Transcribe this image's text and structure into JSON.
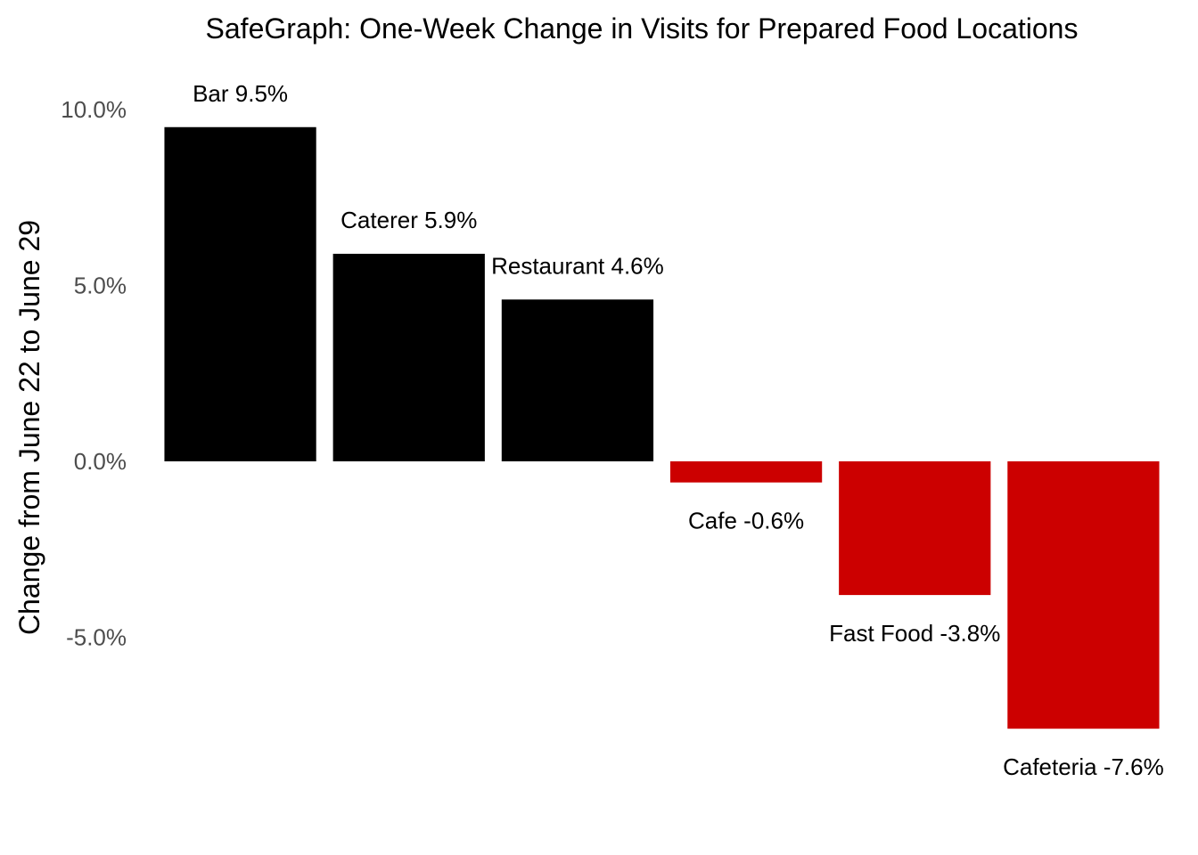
{
  "chart_data": {
    "type": "bar",
    "title": "SafeGraph: One-Week Change in Visits for Prepared Food Locations",
    "xlabel": "",
    "ylabel": "Change from June 22 to June 29",
    "ylim": [
      -9.8,
      11.5
    ],
    "y_ticks": [
      10,
      5,
      0,
      -5
    ],
    "y_tick_labels": [
      "10.0%",
      "5.0%",
      "0.0%",
      "-5.0%"
    ],
    "categories": [
      "Bar",
      "Caterer",
      "Restaurant",
      "Cafe",
      "Fast Food",
      "Cafeteria"
    ],
    "values": [
      9.5,
      5.9,
      4.6,
      -0.6,
      -3.8,
      -7.6
    ],
    "data_labels": [
      "Bar 9.5%",
      "Caterer 5.9%",
      "Restaurant 4.6%",
      "Cafe -0.6%",
      "Fast Food -3.8%",
      "Cafeteria -7.6%"
    ],
    "colors": {
      "positive": "#000000",
      "negative": "#cc0000"
    },
    "grid": false,
    "legend": "none"
  }
}
